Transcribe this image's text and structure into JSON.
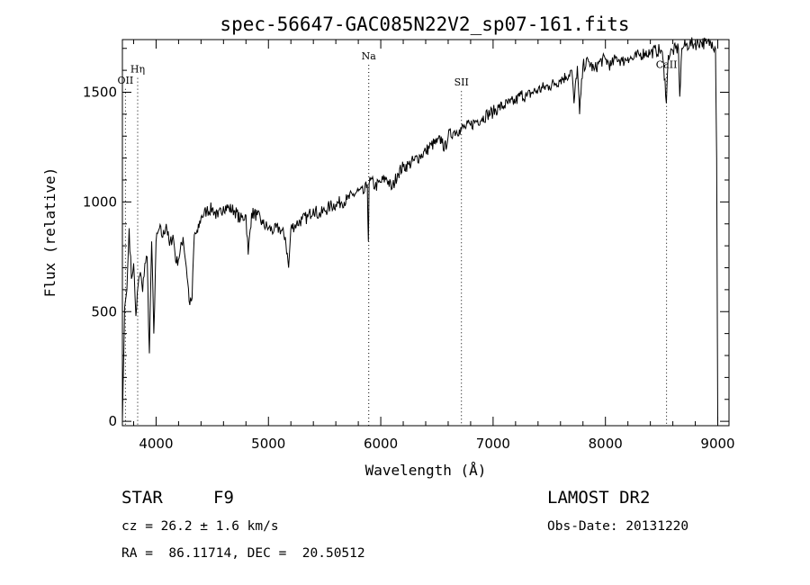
{
  "chart_data": {
    "type": "line",
    "title": "spec-56647-GAC085N22V2_sp07-161.fits",
    "xlabel": "Wavelength (Å)",
    "ylabel": "Flux (relative)",
    "xlim": [
      3700,
      9100
    ],
    "ylim": [
      -20,
      1740
    ],
    "x_ticks": [
      4000,
      5000,
      6000,
      7000,
      8000,
      9000
    ],
    "y_ticks": [
      0,
      500,
      1000,
      1500
    ],
    "x_tick_labels": [
      "4000",
      "5000",
      "6000",
      "7000",
      "8000",
      "9000"
    ],
    "y_tick_labels": [
      "0",
      "500",
      "1000",
      "1500"
    ],
    "grid": false,
    "spectral_lines": [
      {
        "label": "OII",
        "wavelength": 3727,
        "label_flux": 1540
      },
      {
        "label": "Hη",
        "wavelength": 3836,
        "label_flux": 1590
      },
      {
        "label": "Na",
        "wavelength": 5893,
        "label_flux": 1650
      },
      {
        "label": "SII",
        "wavelength": 6718,
        "label_flux": 1530
      },
      {
        "label": "CaII",
        "wavelength": 8544,
        "label_flux": 1610
      }
    ],
    "series": [
      {
        "x": [
          3700,
          3720,
          3740,
          3760,
          3780,
          3800,
          3820,
          3840,
          3860,
          3880,
          3900,
          3920,
          3940,
          3960,
          3980,
          4000,
          4030,
          4060,
          4090,
          4120,
          4150,
          4180,
          4210,
          4240,
          4270,
          4300,
          4320,
          4340,
          4370,
          4400,
          4450,
          4500,
          4550,
          4600,
          4650,
          4700,
          4750,
          4800,
          4820,
          4850,
          4900,
          4950,
          5000,
          5050,
          5100,
          5150,
          5180,
          5200,
          5250,
          5300,
          5350,
          5400,
          5450,
          5500,
          5550,
          5600,
          5650,
          5700,
          5750,
          5800,
          5850,
          5880,
          5890,
          5896,
          5910,
          5950,
          6000,
          6050,
          6100,
          6150,
          6200,
          6250,
          6300,
          6350,
          6400,
          6450,
          6500,
          6550,
          6563,
          6600,
          6650,
          6700,
          6750,
          6800,
          6850,
          6900,
          6950,
          7000,
          7050,
          7100,
          7150,
          7200,
          7250,
          7300,
          7350,
          7400,
          7450,
          7500,
          7550,
          7600,
          7650,
          7700,
          7720,
          7750,
          7770,
          7800,
          7850,
          7900,
          7950,
          8000,
          8050,
          8100,
          8150,
          8200,
          8250,
          8300,
          8350,
          8400,
          8450,
          8500,
          8530,
          8542,
          8560,
          8600,
          8650,
          8662,
          8680,
          8700,
          8750,
          8800,
          8850,
          8900,
          8950,
          8980,
          8990,
          9000
        ],
        "y": [
          0,
          520,
          600,
          880,
          650,
          720,
          480,
          620,
          680,
          590,
          720,
          750,
          310,
          820,
          400,
          820,
          880,
          840,
          900,
          800,
          850,
          720,
          760,
          840,
          700,
          530,
          560,
          850,
          860,
          930,
          960,
          970,
          930,
          980,
          970,
          960,
          920,
          940,
          760,
          950,
          940,
          900,
          880,
          870,
          880,
          840,
          700,
          880,
          900,
          920,
          930,
          970,
          940,
          960,
          980,
          990,
          1000,
          1010,
          1030,
          1050,
          1040,
          1080,
          820,
          1080,
          1100,
          1070,
          1090,
          1110,
          1060,
          1130,
          1160,
          1170,
          1190,
          1210,
          1230,
          1260,
          1270,
          1290,
          1230,
          1300,
          1320,
          1330,
          1340,
          1350,
          1370,
          1380,
          1400,
          1410,
          1430,
          1440,
          1450,
          1460,
          1490,
          1480,
          1500,
          1510,
          1520,
          1530,
          1540,
          1560,
          1570,
          1600,
          1450,
          1620,
          1400,
          1620,
          1640,
          1600,
          1640,
          1650,
          1620,
          1660,
          1640,
          1660,
          1650,
          1670,
          1680,
          1680,
          1690,
          1690,
          1560,
          1450,
          1670,
          1690,
          1700,
          1480,
          1700,
          1710,
          1720,
          1720,
          1730,
          1720,
          1730,
          1700,
          1200,
          0
        ]
      }
    ]
  },
  "info": {
    "object_type": "STAR",
    "subclass": "F9",
    "survey": "LAMOST DR2",
    "redshift": "cz = 26.2 ± 1.6 km/s",
    "obs_date": "Obs-Date: 20131220",
    "coords": "RA =  86.11714, DEC =  20.50512"
  },
  "colors": {
    "spectrum": "#000000",
    "axes": "#000000",
    "line_markers": "#000000",
    "background": "#ffffff"
  }
}
